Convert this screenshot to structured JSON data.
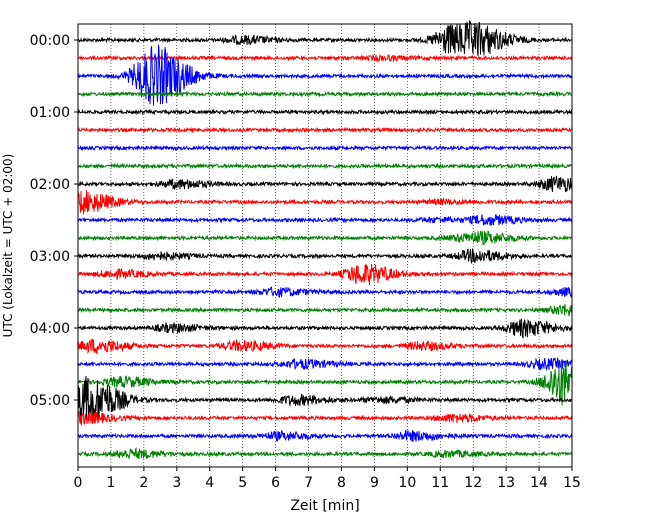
{
  "chart_data": {
    "type": "line",
    "title": "",
    "xlabel": "Zeit  [min]",
    "ylabel": "UTC (Lokalzeit = UTC + 02:00)",
    "xlim": [
      0,
      15
    ],
    "x_ticks": [
      "0",
      "1",
      "2",
      "3",
      "4",
      "5",
      "6",
      "7",
      "8",
      "9",
      "10",
      "11",
      "12",
      "13",
      "14",
      "15"
    ],
    "y_ticks": [
      "00:00",
      "01:00",
      "02:00",
      "03:00",
      "04:00",
      "05:00"
    ],
    "trace_interval_min": 15,
    "grid": "vertical dotted",
    "colors": [
      "#000000",
      "#ff0000",
      "#0000ff",
      "#008000"
    ],
    "series": [
      {
        "start": "00:00",
        "events": [
          {
            "t": 5.0,
            "a": 0.4
          },
          {
            "t": 11.3,
            "a": 1.6
          },
          {
            "t": 12.2,
            "a": 1.2
          }
        ]
      },
      {
        "start": "00:15",
        "events": [
          {
            "t": 9.2,
            "a": 0.2
          }
        ]
      },
      {
        "start": "00:30",
        "events": [
          {
            "t": 2.1,
            "a": 2.0
          },
          {
            "t": 2.5,
            "a": 1.6
          }
        ]
      },
      {
        "start": "00:45",
        "events": []
      },
      {
        "start": "01:00",
        "events": []
      },
      {
        "start": "01:15",
        "events": []
      },
      {
        "start": "01:30",
        "events": []
      },
      {
        "start": "01:45",
        "events": []
      },
      {
        "start": "02:00",
        "events": [
          {
            "t": 3.0,
            "a": 0.45
          },
          {
            "t": 14.5,
            "a": 0.8
          }
        ]
      },
      {
        "start": "02:15",
        "events": [
          {
            "t": 0.1,
            "a": 1.2
          },
          {
            "t": 11.0,
            "a": 0.2
          }
        ]
      },
      {
        "start": "02:30",
        "events": [
          {
            "t": 10.8,
            "a": 0.2
          },
          {
            "t": 12.4,
            "a": 0.5
          }
        ]
      },
      {
        "start": "02:45",
        "events": [
          {
            "t": 11.6,
            "a": 0.3
          },
          {
            "t": 12.3,
            "a": 0.45
          }
        ]
      },
      {
        "start": "03:00",
        "events": [
          {
            "t": 2.4,
            "a": 0.35
          },
          {
            "t": 12.0,
            "a": 0.65
          }
        ]
      },
      {
        "start": "03:15",
        "events": [
          {
            "t": 1.1,
            "a": 0.4
          },
          {
            "t": 8.6,
            "a": 1.1
          }
        ]
      },
      {
        "start": "03:30",
        "events": [
          {
            "t": 6.0,
            "a": 0.4
          },
          {
            "t": 14.9,
            "a": 0.4
          }
        ]
      },
      {
        "start": "03:45",
        "events": [
          {
            "t": 14.8,
            "a": 0.55
          }
        ]
      },
      {
        "start": "04:00",
        "events": [
          {
            "t": 2.8,
            "a": 0.4
          },
          {
            "t": 13.5,
            "a": 0.9
          }
        ]
      },
      {
        "start": "04:15",
        "events": [
          {
            "t": 0.5,
            "a": 0.7
          },
          {
            "t": 4.9,
            "a": 0.5
          },
          {
            "t": 10.4,
            "a": 0.4
          }
        ]
      },
      {
        "start": "04:30",
        "events": [
          {
            "t": 6.7,
            "a": 0.45
          },
          {
            "t": 14.2,
            "a": 0.5
          }
        ]
      },
      {
        "start": "04:45",
        "events": [
          {
            "t": 1.3,
            "a": 0.5
          },
          {
            "t": 14.7,
            "a": 2.5
          }
        ]
      },
      {
        "start": "05:00",
        "events": [
          {
            "t": 0.3,
            "a": 2.6
          },
          {
            "t": 6.6,
            "a": 0.5
          },
          {
            "t": 9.2,
            "a": 0.3
          }
        ]
      },
      {
        "start": "05:15",
        "events": [
          {
            "t": 0.1,
            "a": 0.6
          },
          {
            "t": 11.4,
            "a": 0.4
          }
        ]
      },
      {
        "start": "05:30",
        "events": [
          {
            "t": 6.1,
            "a": 0.4
          },
          {
            "t": 10.1,
            "a": 0.5
          }
        ]
      },
      {
        "start": "05:45",
        "events": [
          {
            "t": 1.6,
            "a": 0.45
          },
          {
            "t": 11.2,
            "a": 0.3
          }
        ]
      }
    ]
  }
}
